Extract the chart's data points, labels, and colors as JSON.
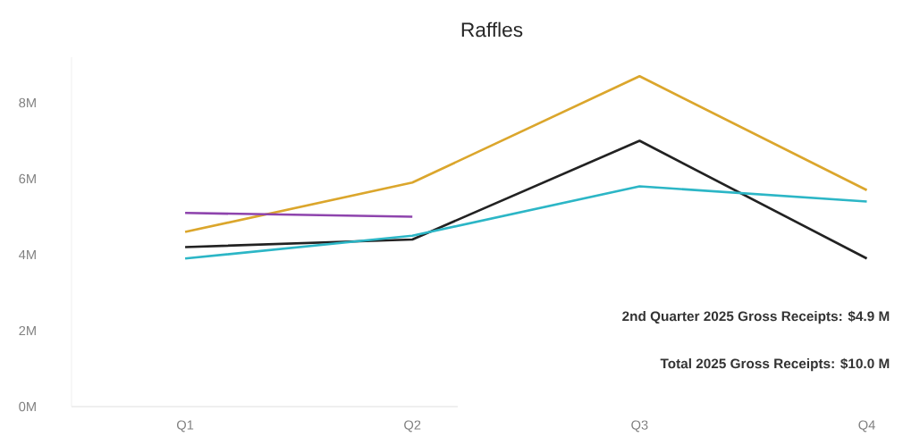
{
  "chart_data": {
    "type": "line",
    "title": "Raffles",
    "categories": [
      "Q1",
      "Q2",
      "Q3",
      "Q4"
    ],
    "series": [
      {
        "color": "#dba62c",
        "values": [
          4.6,
          5.9,
          8.7,
          5.7
        ]
      },
      {
        "color": "#222222",
        "values": [
          4.2,
          4.4,
          7.0,
          3.9
        ]
      },
      {
        "color": "#2cb6c6",
        "values": [
          3.9,
          4.5,
          5.8,
          5.4
        ]
      },
      {
        "color": "#8e44ad",
        "values": [
          5.1,
          5.0,
          null,
          null
        ]
      }
    ],
    "ylim": [
      0,
      9.2
    ],
    "yticks": [
      {
        "value": 0,
        "label": "0M"
      },
      {
        "value": 2,
        "label": "2M"
      },
      {
        "value": 4,
        "label": "4M"
      },
      {
        "value": 6,
        "label": "6M"
      },
      {
        "value": 8,
        "label": "8M"
      }
    ],
    "grid": false,
    "marker": "none",
    "line_style": "solid",
    "annotations": [
      "2nd Quarter 2025 Gross Receipts:  $4.9 M",
      "Total 2025 Gross Receipts:  $10.0 M"
    ]
  }
}
